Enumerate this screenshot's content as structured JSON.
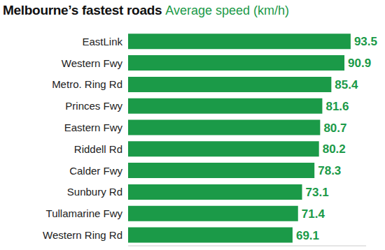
{
  "chart_data": {
    "type": "bar",
    "orientation": "horizontal",
    "title": "Melbourne’s fastest roads",
    "subtitle": "Average speed (km/h)",
    "categories": [
      "EastLink",
      "Western Fwy",
      "Metro. Ring Rd",
      "Princes Fwy",
      "Eastern Fwy",
      "Riddell Rd",
      "Calder Fwy",
      "Sunbury Rd",
      "Tullamarine Fwy",
      "Western Ring Rd"
    ],
    "values": [
      93.5,
      90.9,
      85.4,
      81.6,
      80.7,
      80.2,
      78.3,
      73.1,
      71.4,
      69.1
    ],
    "color": "#1b9a48",
    "xlim": [
      0,
      100
    ],
    "data_labels": true,
    "tick_labels": "y",
    "grid": false
  }
}
